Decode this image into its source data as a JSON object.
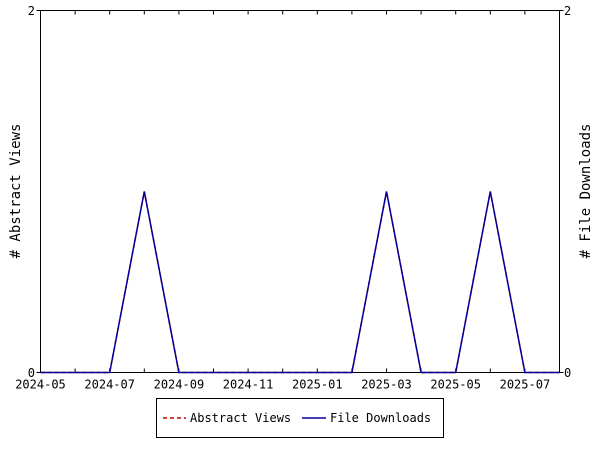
{
  "chart_data": {
    "type": "line",
    "y_left_label": "# Abstract Views",
    "y_right_label": "# File Downloads",
    "x_tick_labels": [
      "2024-05",
      "2024-07",
      "2024-09",
      "2024-11",
      "2025-01",
      "2025-03",
      "2025-05",
      "2025-07"
    ],
    "x_categories": [
      "2024-05",
      "2024-06",
      "2024-07",
      "2024-08",
      "2024-09",
      "2024-10",
      "2024-11",
      "2024-12",
      "2025-01",
      "2025-02",
      "2025-03",
      "2025-04",
      "2025-05",
      "2025-06",
      "2025-07",
      "2025-08"
    ],
    "y_left_ticks": [
      "0",
      "2"
    ],
    "y_right_ticks": [
      "0",
      "2"
    ],
    "ylim": [
      0,
      2
    ],
    "grid": false,
    "legend_position": "bottom",
    "series": [
      {
        "name": "Abstract Views",
        "color": "#cc0000",
        "style": "dashed",
        "axis": "left",
        "values": [
          0,
          0,
          0,
          1,
          0,
          0,
          0,
          0,
          0,
          0,
          1,
          0,
          0,
          1,
          0,
          0
        ]
      },
      {
        "name": "File Downloads",
        "color": "#000099",
        "style": "solid",
        "axis": "right",
        "values": [
          0,
          0,
          0,
          1,
          0,
          0,
          0,
          0,
          0,
          0,
          1,
          0,
          0,
          1,
          0,
          0
        ]
      }
    ]
  }
}
